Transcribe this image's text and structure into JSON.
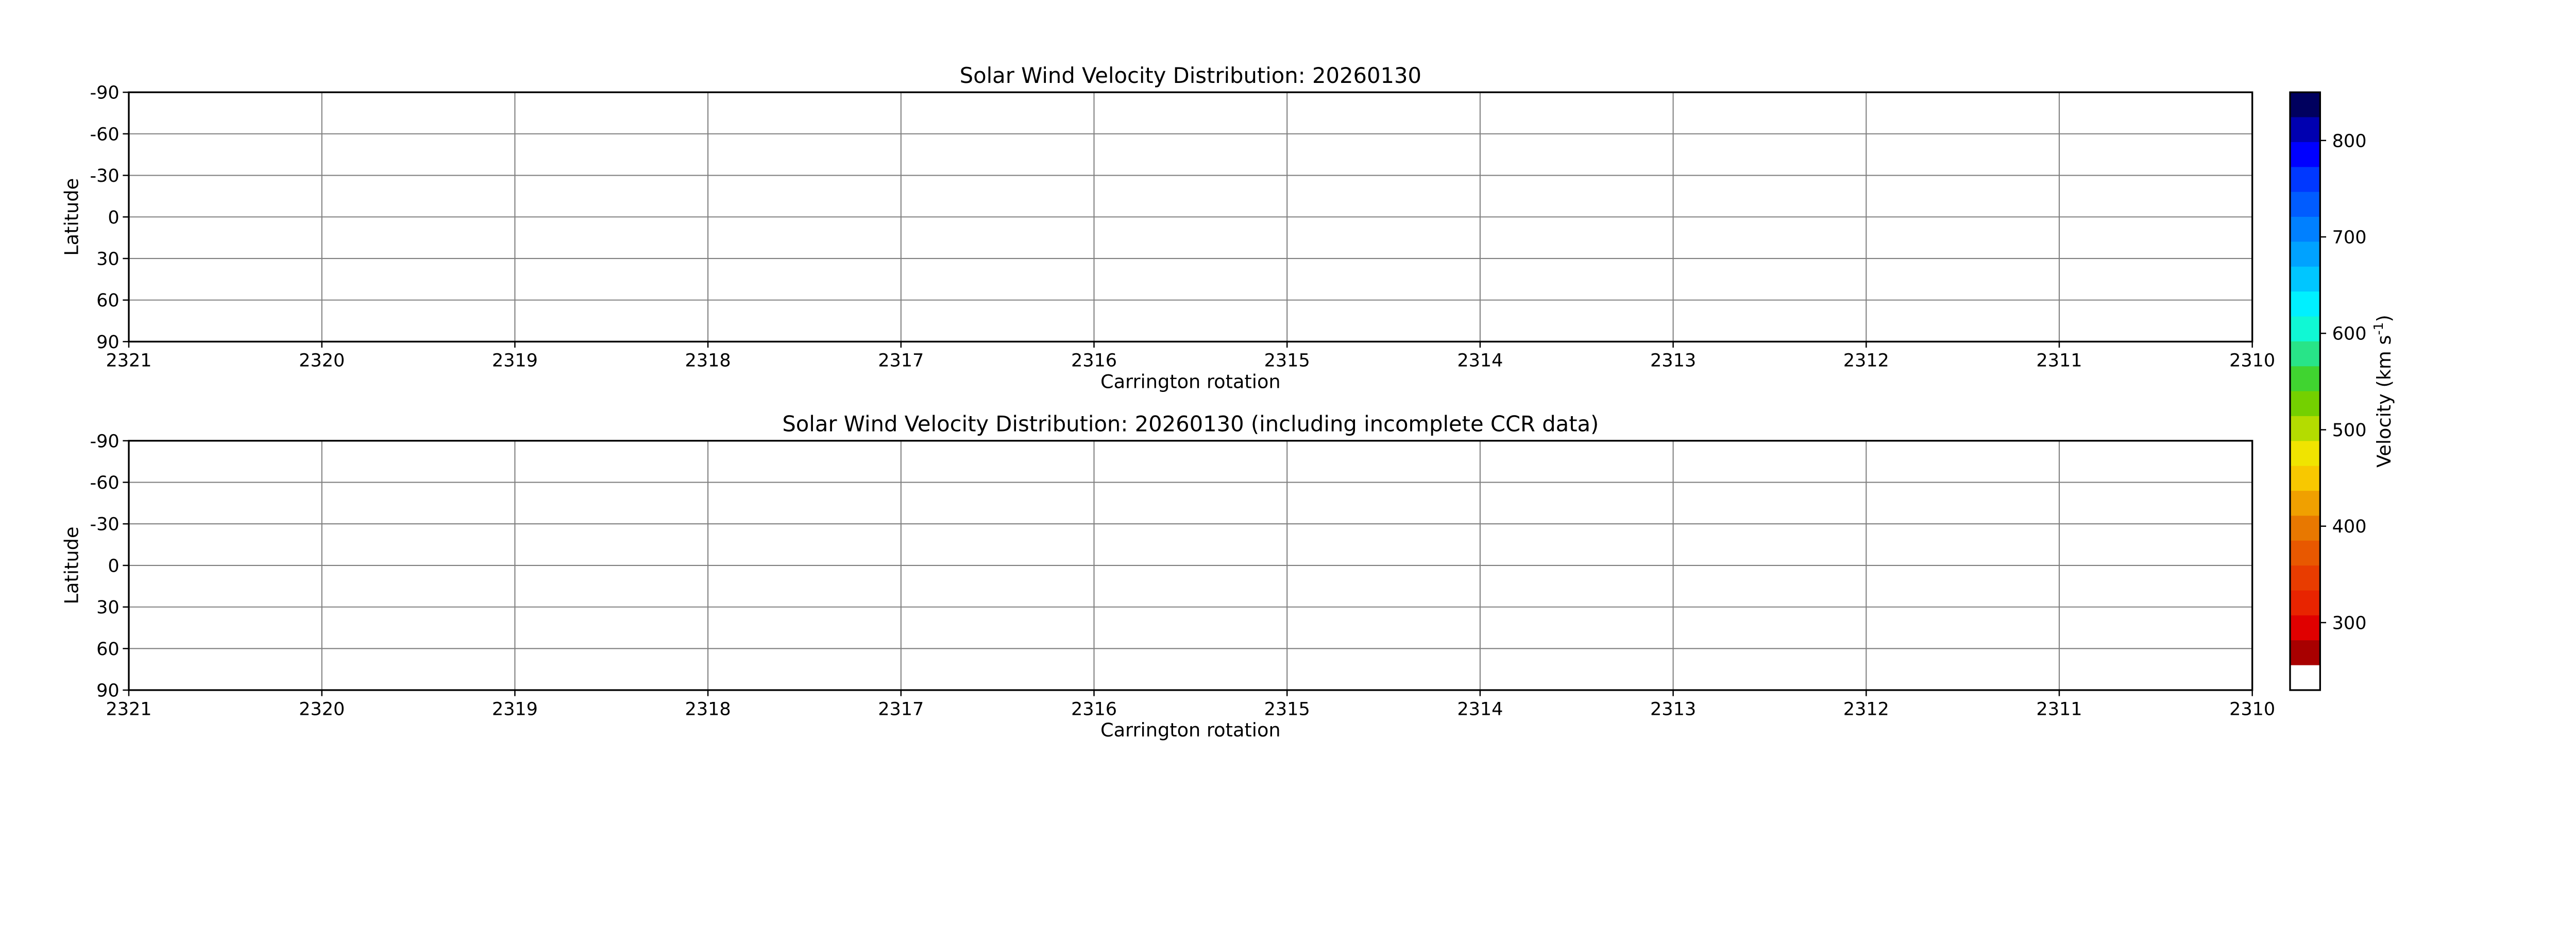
{
  "chart_data": [
    {
      "type": "heatmap",
      "title": "Solar Wind Velocity Distribution: 20260130",
      "xlabel": "Carrington rotation",
      "ylabel": "Latitude",
      "xlim": [
        2321,
        2310
      ],
      "ylim": [
        -90,
        90
      ],
      "xticks": [
        "2321",
        "2320",
        "2319",
        "2318",
        "2317",
        "2316",
        "2315",
        "2314",
        "2313",
        "2312",
        "2311",
        "2310"
      ],
      "yticks": [
        "-90",
        "-60",
        "-30",
        "0",
        "30",
        "60",
        "90"
      ],
      "grid": true,
      "values": []
    },
    {
      "type": "heatmap",
      "title": "Solar Wind Velocity Distribution: 20260130 (including incomplete CCR data)",
      "xlabel": "Carrington rotation",
      "ylabel": "Latitude",
      "xlim": [
        2321,
        2310
      ],
      "ylim": [
        -90,
        90
      ],
      "xticks": [
        "2321",
        "2320",
        "2319",
        "2318",
        "2317",
        "2316",
        "2315",
        "2314",
        "2313",
        "2312",
        "2311",
        "2310"
      ],
      "yticks": [
        "-90",
        "-60",
        "-30",
        "0",
        "30",
        "60",
        "90"
      ],
      "grid": true,
      "values": []
    }
  ],
  "colorbar": {
    "label": "Velocity (km s",
    "label_sup": "-1",
    "label_end": ")",
    "range": [
      230,
      850
    ],
    "ticks": [
      "300",
      "400",
      "500",
      "600",
      "700",
      "800"
    ],
    "colors_top_to_bottom": [
      "#00005e",
      "#0000b0",
      "#0000ff",
      "#0038ff",
      "#005cff",
      "#0080ff",
      "#00a2ff",
      "#00c6ff",
      "#00f0ff",
      "#10f8d4",
      "#28e488",
      "#40d430",
      "#74d000",
      "#b4dc00",
      "#f0e400",
      "#f8c800",
      "#f0a000",
      "#e87800",
      "#e85800",
      "#e83c00",
      "#e82400",
      "#e00000",
      "#a80000",
      "#ffffff"
    ]
  }
}
